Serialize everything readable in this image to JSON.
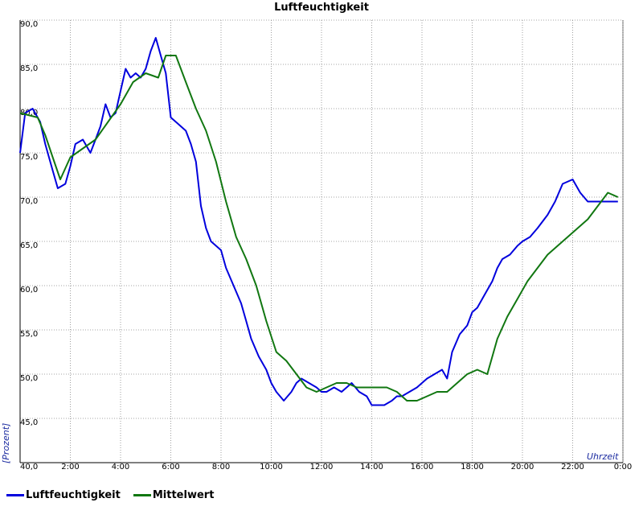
{
  "chart_data": {
    "type": "line",
    "title": "Luftfeuchtigkeit",
    "xlabel": "Uhrzeit",
    "ylabel": "[Prozent]",
    "x_tick_labels": [
      "0:00",
      "2:00",
      "4:00",
      "6:00",
      "8:00",
      "10:00",
      "12:00",
      "14:00",
      "16:00",
      "18:00",
      "20:00",
      "22:00",
      "0:00"
    ],
    "y_tick_labels": [
      "40,0",
      "45,0",
      "50,0",
      "55,0",
      "60,0",
      "65,0",
      "70,0",
      "75,0",
      "80,0",
      "85,0",
      "90,0"
    ],
    "xlim": [
      0,
      24
    ],
    "ylim": [
      40,
      90
    ],
    "grid": true,
    "legend_position": "bottom-left",
    "series": [
      {
        "name": "Luftfeuchtigkeit",
        "color": "#0000dd",
        "x": [
          0,
          0.2,
          0.5,
          0.8,
          1.0,
          1.3,
          1.5,
          1.8,
          2.0,
          2.2,
          2.5,
          2.8,
          3.0,
          3.2,
          3.4,
          3.6,
          3.8,
          4.0,
          4.2,
          4.4,
          4.6,
          4.8,
          5.0,
          5.2,
          5.4,
          5.6,
          5.8,
          6.0,
          6.2,
          6.4,
          6.6,
          6.8,
          7.0,
          7.2,
          7.4,
          7.6,
          7.8,
          8.0,
          8.2,
          8.5,
          8.8,
          9.0,
          9.2,
          9.5,
          9.8,
          10.0,
          10.2,
          10.5,
          10.8,
          11.0,
          11.2,
          11.5,
          11.8,
          12.0,
          12.2,
          12.5,
          12.8,
          13.0,
          13.2,
          13.5,
          13.8,
          14.0,
          14.2,
          14.5,
          14.8,
          15.0,
          15.2,
          15.5,
          15.8,
          16.0,
          16.2,
          16.5,
          16.8,
          17.0,
          17.2,
          17.5,
          17.8,
          18.0,
          18.2,
          18.5,
          18.8,
          19.0,
          19.2,
          19.5,
          19.8,
          20.0,
          20.3,
          20.6,
          21.0,
          21.3,
          21.6,
          22.0,
          22.3,
          22.6,
          22.8,
          23.0,
          23.3,
          23.6,
          23.8
        ],
        "y": [
          75.0,
          79.5,
          80.0,
          78.5,
          76.0,
          73.0,
          71.0,
          71.5,
          73.5,
          76.0,
          76.5,
          75.0,
          76.5,
          78.0,
          80.5,
          79.0,
          79.5,
          82.0,
          84.5,
          83.5,
          84.0,
          83.5,
          84.5,
          86.5,
          88.0,
          86.0,
          84.0,
          79.0,
          78.5,
          78.0,
          77.5,
          76.0,
          74.0,
          69.0,
          66.5,
          65.0,
          64.5,
          64.0,
          62.0,
          60.0,
          58.0,
          56.0,
          54.0,
          52.0,
          50.5,
          49.0,
          48.0,
          47.0,
          48.0,
          49.0,
          49.5,
          49.0,
          48.5,
          48.0,
          48.0,
          48.5,
          48.0,
          48.5,
          49.0,
          48.0,
          47.5,
          46.5,
          46.5,
          46.5,
          47.0,
          47.5,
          47.5,
          48.0,
          48.5,
          49.0,
          49.5,
          50.0,
          50.5,
          49.5,
          52.5,
          54.5,
          55.5,
          57.0,
          57.5,
          59.0,
          60.5,
          62.0,
          63.0,
          63.5,
          64.5,
          65.0,
          65.5,
          66.5,
          68.0,
          69.5,
          71.5,
          72.0,
          70.5,
          69.5,
          69.5,
          69.5,
          69.5,
          69.5,
          69.5
        ]
      },
      {
        "name": "Mittelwert",
        "color": "#117711",
        "x": [
          0,
          0.7,
          1.0,
          1.3,
          1.6,
          2.0,
          2.5,
          3.0,
          3.5,
          4.0,
          4.5,
          5.0,
          5.5,
          5.8,
          6.2,
          6.6,
          7.0,
          7.4,
          7.8,
          8.2,
          8.6,
          9.0,
          9.4,
          9.8,
          10.2,
          10.6,
          11.0,
          11.4,
          11.8,
          12.2,
          12.6,
          13.0,
          13.4,
          13.8,
          14.2,
          14.6,
          15.0,
          15.4,
          15.8,
          16.2,
          16.6,
          17.0,
          17.4,
          17.8,
          18.2,
          18.6,
          19.0,
          19.4,
          19.8,
          20.2,
          20.6,
          21.0,
          21.4,
          21.8,
          22.2,
          22.6,
          23.0,
          23.4,
          23.8
        ],
        "y": [
          79.5,
          79.0,
          77.0,
          74.5,
          72.0,
          74.5,
          75.5,
          76.5,
          78.5,
          80.5,
          83.0,
          84.0,
          83.5,
          86.0,
          86.0,
          83.0,
          80.0,
          77.5,
          74.0,
          69.5,
          65.5,
          63.0,
          60.0,
          56.0,
          52.5,
          51.5,
          50.0,
          48.5,
          48.0,
          48.5,
          49.0,
          49.0,
          48.5,
          48.5,
          48.5,
          48.5,
          48.0,
          47.0,
          47.0,
          47.5,
          48.0,
          48.0,
          49.0,
          50.0,
          50.5,
          50.0,
          54.0,
          56.5,
          58.5,
          60.5,
          62.0,
          63.5,
          64.5,
          65.5,
          66.5,
          67.5,
          69.0,
          70.5,
          70.0
        ]
      }
    ]
  }
}
